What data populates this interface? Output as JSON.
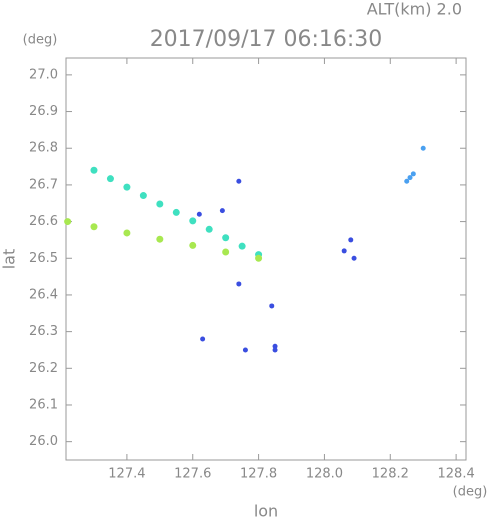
{
  "chart_data": {
    "type": "scatter",
    "title": "2017/09/17 06:16:30",
    "subtitle": "ALT(km) 2.0",
    "x_label": "lon",
    "y_label": "lat",
    "x_unit": "(deg)",
    "y_unit": "(deg)",
    "xlim": [
      127.215,
      128.43
    ],
    "ylim": [
      25.95,
      27.046
    ],
    "xticks": [
      127.4,
      127.6,
      127.8,
      {
        "value": 128.0,
        "label": "128.0"
      },
      128.2,
      128.4
    ],
    "yticks": [
      {
        "value": 26.0,
        "label": "26.0"
      },
      26.1,
      26.2,
      26.3,
      26.4,
      26.5,
      26.6,
      26.7,
      26.8,
      26.9,
      {
        "value": 27.0,
        "label": "27.0"
      }
    ],
    "series": [
      {
        "color": "#3fe0c0",
        "x": [
          127.3,
          127.35,
          127.4,
          127.45,
          127.5,
          127.55,
          127.6,
          127.65,
          127.7,
          127.75,
          127.8
        ],
        "y": [
          26.74,
          26.717,
          26.694,
          26.671,
          26.648,
          26.625,
          26.602,
          26.579,
          26.556,
          26.533,
          26.51
        ]
      },
      {
        "color": "#a8e850",
        "x": [
          127.22,
          127.3,
          127.4,
          127.5,
          127.6,
          127.7,
          127.8
        ],
        "y": [
          26.6,
          26.586,
          26.569,
          26.552,
          26.535,
          26.517,
          26.5
        ]
      },
      {
        "color": "#3a4ee0",
        "x": [
          127.74,
          127.62,
          127.69,
          128.08,
          128.06,
          128.09,
          127.74,
          127.63,
          127.85,
          127.85,
          127.76,
          127.84
        ],
        "y": [
          26.71,
          26.62,
          26.63,
          26.55,
          26.52,
          26.5,
          26.43,
          26.28,
          26.26,
          26.25,
          26.25,
          26.37
        ]
      },
      {
        "color": "#4aa0f0",
        "x": [
          128.26,
          128.25,
          128.27,
          128.3
        ],
        "y": [
          26.72,
          26.71,
          26.73,
          26.8
        ]
      }
    ]
  }
}
